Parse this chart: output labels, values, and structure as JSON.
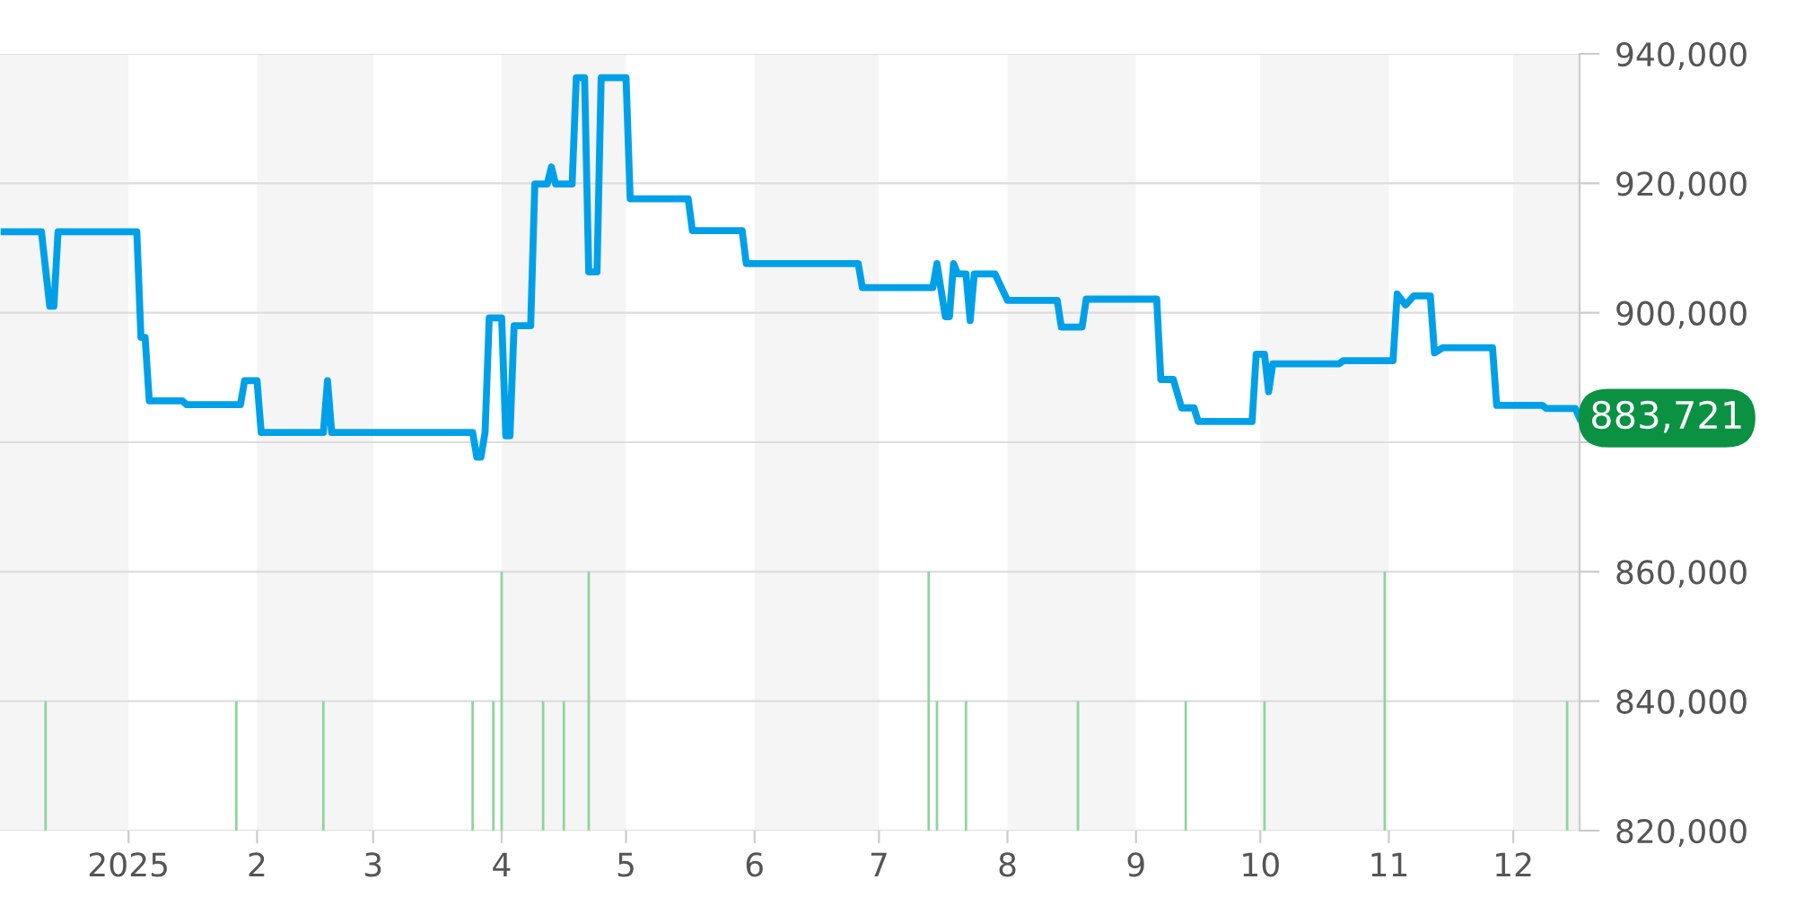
{
  "chart_data": {
    "type": "line",
    "xlim": [
      "2024-12-01",
      "2025-12-17"
    ],
    "ylim": [
      820000,
      940000
    ],
    "xticks": [
      {
        "value": "2025-01-01",
        "label": "2025"
      },
      {
        "value": "2025-02-01",
        "label": "2"
      },
      {
        "value": "2025-03-01",
        "label": "3"
      },
      {
        "value": "2025-04-01",
        "label": "4"
      },
      {
        "value": "2025-05-01",
        "label": "5"
      },
      {
        "value": "2025-06-01",
        "label": "6"
      },
      {
        "value": "2025-07-01",
        "label": "7"
      },
      {
        "value": "2025-08-01",
        "label": "8"
      },
      {
        "value": "2025-09-01",
        "label": "9"
      },
      {
        "value": "2025-10-01",
        "label": "10"
      },
      {
        "value": "2025-11-01",
        "label": "11"
      },
      {
        "value": "2025-12-01",
        "label": "12"
      }
    ],
    "yticks": [
      {
        "value": 820000,
        "label": "820,000"
      },
      {
        "value": 840000,
        "label": "840,000"
      },
      {
        "value": 860000,
        "label": "860,000"
      },
      {
        "value": 880000,
        "label": null
      },
      {
        "value": 900000,
        "label": "900,000"
      },
      {
        "value": 920000,
        "label": "920,000"
      },
      {
        "value": 940000,
        "label": "940,000"
      }
    ],
    "grid": "y",
    "legend": false,
    "marker": "none",
    "line_style": "solid",
    "bands": [
      {
        "axis": "x",
        "from": "2024-12-01",
        "to": "2025-01-01",
        "color": "#f5f5f5"
      },
      {
        "axis": "x",
        "from": "2025-02-01",
        "to": "2025-03-01",
        "color": "#f5f5f5"
      },
      {
        "axis": "x",
        "from": "2025-04-01",
        "to": "2025-05-01",
        "color": "#f5f5f5"
      },
      {
        "axis": "x",
        "from": "2025-06-01",
        "to": "2025-07-01",
        "color": "#f5f5f5"
      },
      {
        "axis": "x",
        "from": "2025-08-01",
        "to": "2025-09-01",
        "color": "#f5f5f5"
      },
      {
        "axis": "x",
        "from": "2025-10-01",
        "to": "2025-11-01",
        "color": "#f5f5f5"
      },
      {
        "axis": "x",
        "from": "2025-12-01",
        "to": "2025-12-17",
        "color": "#f5f5f5"
      }
    ],
    "series": [
      {
        "type": "bar",
        "color": "#8fd49f",
        "x": [
          "2024-12-12",
          "2025-01-27",
          "2025-02-17",
          "2025-03-25",
          "2025-03-30",
          "2025-04-01",
          "2025-04-11",
          "2025-04-16",
          "2025-04-22",
          "2025-07-13",
          "2025-07-15",
          "2025-07-22",
          "2025-08-18",
          "2025-09-13",
          "2025-10-02",
          "2025-10-31",
          "2025-12-14"
        ],
        "base": [
          820000,
          820000,
          820000,
          820000,
          820000,
          820000,
          820000,
          820000,
          820000,
          820000,
          820000,
          820000,
          820000,
          820000,
          820000,
          820000,
          820000
        ],
        "values": [
          20000,
          20000,
          20000,
          20000,
          20000,
          40000,
          20000,
          20000,
          40000,
          40000,
          20000,
          20000,
          20000,
          20000,
          20000,
          40000,
          20000
        ]
      },
      {
        "color": "#00a0e9",
        "x": [
          "2024-12-02",
          "2024-12-11",
          "2024-12-13",
          "2024-12-14",
          "2024-12-15",
          "2025-01-03",
          "2025-01-04",
          "2025-01-05",
          "2025-01-06",
          "2025-01-14",
          "2025-01-15",
          "2025-01-28",
          "2025-01-29",
          "2025-02-01",
          "2025-02-02",
          "2025-02-17",
          "2025-02-18",
          "2025-02-19",
          "2025-03-25",
          "2025-03-26",
          "2025-03-27",
          "2025-03-28",
          "2025-03-29",
          "2025-04-01",
          "2025-04-02",
          "2025-04-03",
          "2025-04-04",
          "2025-04-08",
          "2025-04-09",
          "2025-04-12",
          "2025-04-13",
          "2025-04-14",
          "2025-04-18",
          "2025-04-19",
          "2025-04-21",
          "2025-04-22",
          "2025-04-24",
          "2025-04-25",
          "2025-05-01",
          "2025-05-02",
          "2025-05-16",
          "2025-05-17",
          "2025-05-29",
          "2025-05-30",
          "2025-06-26",
          "2025-06-27",
          "2025-07-14",
          "2025-07-15",
          "2025-07-17",
          "2025-07-18",
          "2025-07-19",
          "2025-07-20",
          "2025-07-22",
          "2025-07-23",
          "2025-07-24",
          "2025-07-29",
          "2025-08-01",
          "2025-08-13",
          "2025-08-14",
          "2025-08-19",
          "2025-08-20",
          "2025-09-06",
          "2025-09-07",
          "2025-09-10",
          "2025-09-12",
          "2025-09-15",
          "2025-09-16",
          "2025-09-29",
          "2025-09-30",
          "2025-10-02",
          "2025-10-03",
          "2025-10-04",
          "2025-10-20",
          "2025-10-21",
          "2025-11-02",
          "2025-11-03",
          "2025-11-05",
          "2025-11-07",
          "2025-11-11",
          "2025-11-12",
          "2025-11-14",
          "2025-11-26",
          "2025-11-27",
          "2025-12-08",
          "2025-12-09",
          "2025-12-16",
          "2025-12-17"
        ],
        "values": [
          912500,
          912500,
          901000,
          901000,
          912500,
          912500,
          896200,
          896200,
          886400,
          886400,
          885800,
          885800,
          889500,
          889500,
          881500,
          881500,
          889500,
          881500,
          881500,
          877700,
          877700,
          881500,
          899200,
          899200,
          881000,
          881000,
          898000,
          898000,
          919900,
          919900,
          922500,
          919900,
          919900,
          936300,
          936300,
          906300,
          906300,
          936300,
          936300,
          917600,
          917600,
          912700,
          912700,
          907600,
          907600,
          903900,
          903900,
          907600,
          899400,
          899400,
          907600,
          906000,
          906000,
          898800,
          906000,
          906000,
          901900,
          901900,
          897800,
          897800,
          902100,
          902100,
          889700,
          889700,
          885300,
          885300,
          883200,
          883200,
          893600,
          893600,
          887800,
          892100,
          892100,
          892600,
          892600,
          902900,
          901200,
          902600,
          902600,
          893800,
          894600,
          894600,
          885700,
          885700,
          885200,
          885200,
          883721
        ]
      }
    ],
    "annotations": [
      {
        "text": "883,721",
        "x": "2025-12-17",
        "y": 883721
      }
    ]
  }
}
